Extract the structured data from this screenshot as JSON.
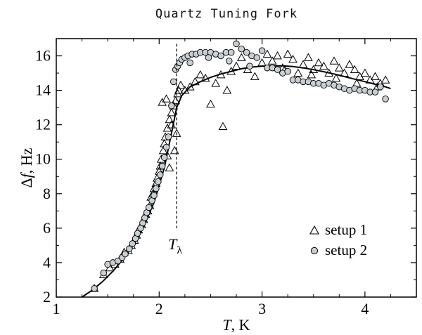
{
  "chart_data": {
    "type": "scatter",
    "title": "Quartz Tuning Fork",
    "xlabel_italic": "T",
    "xlabel_rest": ", K",
    "ylabel_delta": "Δ",
    "ylabel_italic": "f",
    "ylabel_rest": ", Hz",
    "xlim": [
      1,
      4.5
    ],
    "ylim": [
      2,
      17
    ],
    "xticks": [
      1,
      2,
      3,
      4
    ],
    "yticks": [
      2,
      4,
      6,
      8,
      10,
      12,
      14,
      16
    ],
    "grid": false,
    "legend_position": "lower-right",
    "annotation": {
      "label_main": "T",
      "label_sub": "λ",
      "x": 2.17,
      "y_from": 6.0,
      "y_to": 16.7
    },
    "series": [
      {
        "name": "setup 1",
        "marker": "triangle-open",
        "points": [
          [
            1.37,
            2.5
          ],
          [
            1.46,
            3.3
          ],
          [
            1.52,
            3.7
          ],
          [
            1.57,
            3.9
          ],
          [
            1.62,
            4.2
          ],
          [
            1.66,
            4.6
          ],
          [
            1.7,
            4.7
          ],
          [
            1.73,
            5.0
          ],
          [
            1.76,
            5.3
          ],
          [
            1.78,
            5.6
          ],
          [
            1.8,
            5.9
          ],
          [
            1.83,
            6.2
          ],
          [
            1.85,
            6.5
          ],
          [
            1.87,
            6.8
          ],
          [
            1.89,
            7.0
          ],
          [
            1.91,
            7.3
          ],
          [
            1.92,
            7.8
          ],
          [
            1.94,
            8.0
          ],
          [
            1.95,
            8.3
          ],
          [
            1.97,
            8.6
          ],
          [
            1.98,
            8.9
          ],
          [
            2.0,
            9.3
          ],
          [
            2.01,
            9.6
          ],
          [
            2.02,
            10.0
          ],
          [
            2.04,
            10.5
          ],
          [
            2.05,
            10.9
          ],
          [
            2.06,
            11.3
          ],
          [
            2.08,
            11.8
          ],
          [
            2.1,
            12.3
          ],
          [
            2.12,
            12.7
          ],
          [
            2.14,
            13.1
          ],
          [
            2.16,
            13.4
          ],
          [
            2.18,
            13.8
          ],
          [
            2.19,
            14.0
          ],
          [
            2.21,
            14.3
          ],
          [
            2.03,
            13.3
          ],
          [
            2.07,
            13.5
          ],
          [
            2.12,
            12.0
          ],
          [
            2.15,
            10.5
          ],
          [
            2.17,
            11.5
          ],
          [
            2.1,
            9.5
          ],
          [
            2.08,
            10.2
          ],
          [
            2.25,
            14.0
          ],
          [
            2.3,
            14.2
          ],
          [
            2.35,
            14.5
          ],
          [
            2.4,
            14.9
          ],
          [
            2.45,
            14.7
          ],
          [
            2.5,
            13.2
          ],
          [
            2.55,
            14.4
          ],
          [
            2.6,
            14.9
          ],
          [
            2.62,
            11.9
          ],
          [
            2.66,
            14.0
          ],
          [
            2.7,
            15.1
          ],
          [
            2.75,
            15.4
          ],
          [
            2.8,
            15.9
          ],
          [
            2.86,
            15.2
          ],
          [
            2.93,
            14.8
          ],
          [
            3.0,
            15.6
          ],
          [
            3.05,
            16.1
          ],
          [
            3.1,
            15.7
          ],
          [
            3.15,
            16.0
          ],
          [
            3.2,
            15.3
          ],
          [
            3.25,
            16.1
          ],
          [
            3.3,
            15.8
          ],
          [
            3.35,
            15.0
          ],
          [
            3.4,
            15.5
          ],
          [
            3.45,
            15.9
          ],
          [
            3.5,
            15.2
          ],
          [
            3.55,
            15.6
          ],
          [
            3.6,
            15.4
          ],
          [
            3.65,
            15.0
          ],
          [
            3.7,
            15.7
          ],
          [
            3.75,
            15.3
          ],
          [
            3.8,
            15.0
          ],
          [
            3.85,
            15.5
          ],
          [
            3.9,
            15.2
          ],
          [
            3.95,
            14.8
          ],
          [
            4.0,
            15.0
          ],
          [
            4.05,
            14.6
          ],
          [
            4.1,
            14.8
          ],
          [
            4.15,
            14.4
          ],
          [
            4.2,
            14.6
          ],
          [
            3.22,
            15.2
          ],
          [
            3.48,
            14.9
          ],
          [
            3.72,
            14.7
          ],
          [
            3.92,
            14.4
          ],
          [
            4.12,
            14.2
          ]
        ]
      },
      {
        "name": "setup 2",
        "marker": "circle-filled",
        "points": [
          [
            1.37,
            2.5
          ],
          [
            1.46,
            3.4
          ],
          [
            1.5,
            3.9
          ],
          [
            1.55,
            4.0
          ],
          [
            1.6,
            4.1
          ],
          [
            1.64,
            4.3
          ],
          [
            1.67,
            4.5
          ],
          [
            1.71,
            4.8
          ],
          [
            1.74,
            5.1
          ],
          [
            1.77,
            5.4
          ],
          [
            1.79,
            5.7
          ],
          [
            1.82,
            6.0
          ],
          [
            1.84,
            6.3
          ],
          [
            1.86,
            6.6
          ],
          [
            1.88,
            6.9
          ],
          [
            1.9,
            7.2
          ],
          [
            1.93,
            7.6
          ],
          [
            1.95,
            7.9
          ],
          [
            1.97,
            8.3
          ],
          [
            1.99,
            8.7
          ],
          [
            2.01,
            9.1
          ],
          [
            2.03,
            9.6
          ],
          [
            2.05,
            10.1
          ],
          [
            2.07,
            10.7
          ],
          [
            2.09,
            11.3
          ],
          [
            2.12,
            13.1
          ],
          [
            2.14,
            14.5
          ],
          [
            2.16,
            15.2
          ],
          [
            2.18,
            15.4
          ],
          [
            2.2,
            15.6
          ],
          [
            2.22,
            15.8
          ],
          [
            2.25,
            15.9
          ],
          [
            2.28,
            16.0
          ],
          [
            2.32,
            16.1
          ],
          [
            2.36,
            16.1
          ],
          [
            2.4,
            16.2
          ],
          [
            2.45,
            16.2
          ],
          [
            2.5,
            16.2
          ],
          [
            2.55,
            16.1
          ],
          [
            2.6,
            16.0
          ],
          [
            2.65,
            16.2
          ],
          [
            2.7,
            16.2
          ],
          [
            2.75,
            16.7
          ],
          [
            2.8,
            16.4
          ],
          [
            2.85,
            16.2
          ],
          [
            2.9,
            16.0
          ],
          [
            2.95,
            15.9
          ],
          [
            3.0,
            16.3
          ],
          [
            3.05,
            15.3
          ],
          [
            3.1,
            15.3
          ],
          [
            3.15,
            15.2
          ],
          [
            3.2,
            15.0
          ],
          [
            3.25,
            15.1
          ],
          [
            3.3,
            14.6
          ],
          [
            3.35,
            14.6
          ],
          [
            3.4,
            14.5
          ],
          [
            3.45,
            14.5
          ],
          [
            3.5,
            14.4
          ],
          [
            3.55,
            14.4
          ],
          [
            3.6,
            14.3
          ],
          [
            3.65,
            14.4
          ],
          [
            3.7,
            14.3
          ],
          [
            3.75,
            14.2
          ],
          [
            3.8,
            14.1
          ],
          [
            3.85,
            14.0
          ],
          [
            3.9,
            14.1
          ],
          [
            3.95,
            14.0
          ],
          [
            4.0,
            14.0
          ],
          [
            4.05,
            13.9
          ],
          [
            4.1,
            13.9
          ],
          [
            4.15,
            14.2
          ],
          [
            4.2,
            13.5
          ],
          [
            2.3,
            15.6
          ],
          [
            2.48,
            15.9
          ],
          [
            2.68,
            15.7
          ],
          [
            2.88,
            15.4
          ]
        ]
      }
    ],
    "fit_curve": {
      "points": [
        [
          1.25,
          2.0
        ],
        [
          1.35,
          2.4
        ],
        [
          1.45,
          2.9
        ],
        [
          1.55,
          3.5
        ],
        [
          1.65,
          4.2
        ],
        [
          1.75,
          5.0
        ],
        [
          1.85,
          6.1
        ],
        [
          1.95,
          7.5
        ],
        [
          2.05,
          9.5
        ],
        [
          2.12,
          11.5
        ],
        [
          2.17,
          13.0
        ],
        [
          2.22,
          13.7
        ],
        [
          2.3,
          14.2
        ],
        [
          2.4,
          14.5
        ],
        [
          2.5,
          14.75
        ],
        [
          2.6,
          14.95
        ],
        [
          2.7,
          15.1
        ],
        [
          2.8,
          15.25
        ],
        [
          2.9,
          15.35
        ],
        [
          3.0,
          15.4
        ],
        [
          3.1,
          15.42
        ],
        [
          3.2,
          15.42
        ],
        [
          3.3,
          15.38
        ],
        [
          3.4,
          15.3
        ],
        [
          3.5,
          15.2
        ],
        [
          3.6,
          15.08
        ],
        [
          3.7,
          14.95
        ],
        [
          3.8,
          14.8
        ],
        [
          3.9,
          14.65
        ],
        [
          4.0,
          14.5
        ],
        [
          4.1,
          14.35
        ],
        [
          4.2,
          14.2
        ],
        [
          4.25,
          14.1
        ]
      ]
    }
  }
}
